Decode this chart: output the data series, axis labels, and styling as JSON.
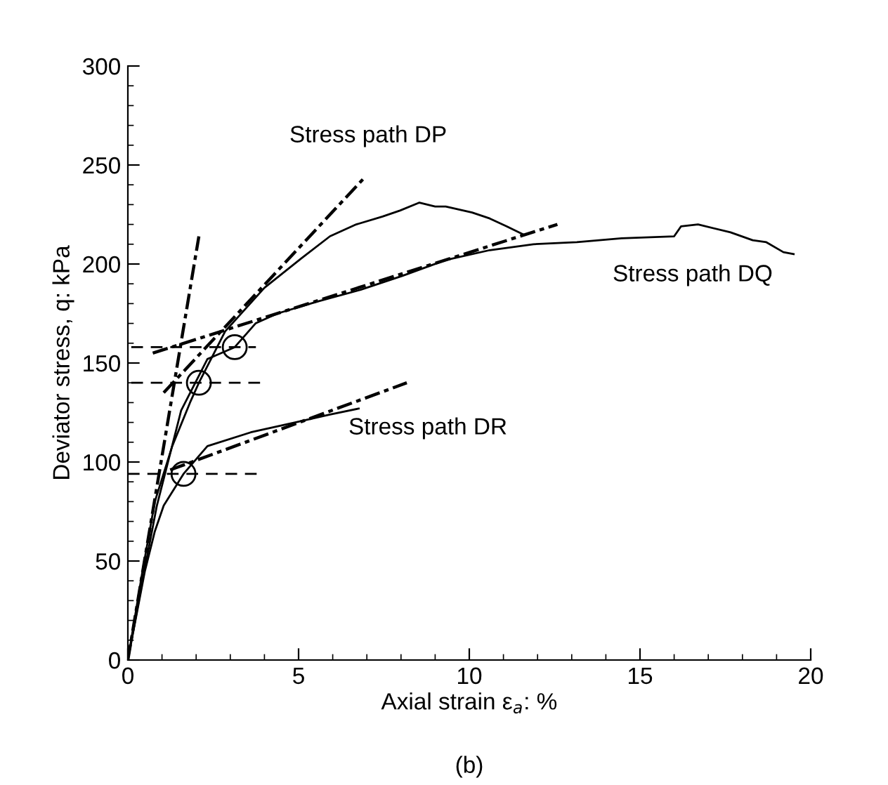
{
  "chart_data": {
    "type": "line",
    "xlabel": "Axial strain ε$_{a}$: %",
    "ylabel": "Deviator stress, q: kPa",
    "xlim": [
      0,
      20
    ],
    "ylim": [
      0,
      300
    ],
    "xticks": [
      0,
      {
        "value": 1,
        "label": null
      },
      {
        "value": 2,
        "label": null
      },
      {
        "value": 3,
        "label": null
      },
      {
        "value": 4,
        "label": null
      },
      5,
      {
        "value": 6,
        "label": null
      },
      {
        "value": 7,
        "label": null
      },
      {
        "value": 8,
        "label": null
      },
      {
        "value": 9,
        "label": null
      },
      10,
      {
        "value": 11,
        "label": null
      },
      {
        "value": 12,
        "label": null
      },
      {
        "value": 13,
        "label": null
      },
      {
        "value": 14,
        "label": null
      },
      15,
      {
        "value": 16,
        "label": null
      },
      {
        "value": 17,
        "label": null
      },
      {
        "value": 18,
        "label": null
      },
      {
        "value": 19,
        "label": null
      },
      20
    ],
    "yticks": [
      0,
      {
        "value": 10,
        "label": null
      },
      {
        "value": 20,
        "label": null
      },
      {
        "value": 30,
        "label": null
      },
      {
        "value": 40,
        "label": null
      },
      50,
      {
        "value": 60,
        "label": null
      },
      {
        "value": 70,
        "label": null
      },
      {
        "value": 80,
        "label": null
      },
      {
        "value": 90,
        "label": null
      },
      100,
      {
        "value": 110,
        "label": null
      },
      {
        "value": 120,
        "label": null
      },
      {
        "value": 130,
        "label": null
      },
      {
        "value": 140,
        "label": null
      },
      150,
      {
        "value": 160,
        "label": null
      },
      {
        "value": 170,
        "label": null
      },
      {
        "value": 180,
        "label": null
      },
      {
        "value": 190,
        "label": null
      },
      200,
      {
        "value": 210,
        "label": null
      },
      {
        "value": 220,
        "label": null
      },
      {
        "value": 230,
        "label": null
      },
      {
        "value": 240,
        "label": null
      },
      250,
      {
        "value": 260,
        "label": null
      },
      {
        "value": 270,
        "label": null
      },
      {
        "value": 280,
        "label": null
      },
      {
        "value": 290,
        "label": null
      },
      300
    ],
    "grid": false,
    "legend": false,
    "marker": "none",
    "series": [
      {
        "color": "#000000",
        "line_style": "solid",
        "x": [
          0,
          0.41,
          0.79,
          1.3,
          1.82,
          2.08,
          2.85,
          4.0,
          5.09,
          5.92,
          6.69,
          7.46,
          7.97,
          8.54,
          9.0,
          9.31,
          10.08,
          10.6,
          11.1,
          11.57
        ],
        "values": [
          0,
          43,
          80,
          108,
          130,
          140,
          166,
          188,
          203,
          214,
          220,
          224,
          227,
          231,
          229,
          229,
          226,
          223,
          219,
          215
        ]
      },
      {
        "color": "#000000",
        "line_style": "solid",
        "x": [
          0,
          0.45,
          0.85,
          1.56,
          2.33,
          3.13,
          3.74,
          4.38,
          5.54,
          6.82,
          8.04,
          9.31,
          10.6,
          11.88,
          13.15,
          14.46,
          16.0,
          16.2,
          16.7,
          17.65,
          18.3,
          18.7,
          19.2,
          19.5
        ],
        "values": [
          0,
          42,
          78,
          126,
          152,
          158,
          170,
          175,
          181,
          187,
          194,
          202,
          207,
          210,
          211,
          213,
          214,
          219,
          220,
          216,
          212,
          211,
          206,
          205
        ]
      },
      {
        "color": "#000000",
        "line_style": "solid",
        "x": [
          0,
          0.5,
          0.79,
          1.05,
          1.63,
          2.33,
          3.6,
          4.9,
          5.92,
          6.76
        ],
        "values": [
          0,
          45,
          65,
          78,
          94,
          108,
          115,
          120,
          124,
          127
        ]
      },
      {
        "color": "#000000",
        "line_style": "dashdot",
        "x": [
          0,
          2.08
        ],
        "values": [
          0,
          214
        ]
      },
      {
        "color": "#000000",
        "line_style": "dashdot",
        "x": [
          1.05,
          6.95
        ],
        "values": [
          135,
          244
        ]
      },
      {
        "color": "#000000",
        "line_style": "dashdot",
        "x": [
          0.73,
          12.58
        ],
        "values": [
          155,
          220
        ]
      },
      {
        "color": "#000000",
        "line_style": "dashdot",
        "x": [
          1.24,
          8.17
        ],
        "values": [
          96,
          140
        ]
      },
      {
        "color": "#000000",
        "line_style": "dashed",
        "x": [
          0.1,
          3.75
        ],
        "values": [
          158,
          158
        ]
      },
      {
        "color": "#000000",
        "line_style": "dashed",
        "x": [
          0.1,
          3.95
        ],
        "values": [
          140,
          140
        ]
      },
      {
        "color": "#000000",
        "line_style": "dashed",
        "x": [
          0,
          3.85
        ],
        "values": [
          94,
          94
        ]
      },
      {
        "type": "scatter",
        "marker": "circle",
        "color": "#000000",
        "x": [
          1.63,
          2.08,
          3.13
        ],
        "values": [
          94,
          140,
          158
        ]
      }
    ],
    "annotations": [
      "Stress path DP",
      "Stress path DQ",
      "Stress path DR",
      "(b)"
    ]
  }
}
